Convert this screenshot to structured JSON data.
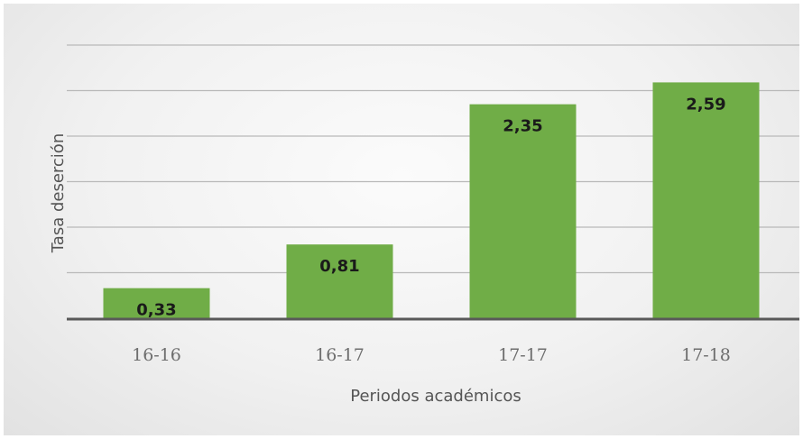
{
  "chart_data": {
    "type": "bar",
    "title": "",
    "xlabel": "Periodos académicos",
    "ylabel": "Tasa deserción",
    "categories": [
      "16-16",
      "16-17",
      "17-17",
      "17-18"
    ],
    "values": [
      0.33,
      0.81,
      2.35,
      2.59
    ],
    "value_labels": [
      "0,33",
      "0,81",
      "2,35",
      "2,59"
    ],
    "ylim": [
      0,
      3
    ],
    "grid": true,
    "legend": "none",
    "colors": {
      "bar": "#70ad47",
      "grid": "#b9b9b9",
      "axis": "#595959"
    }
  }
}
